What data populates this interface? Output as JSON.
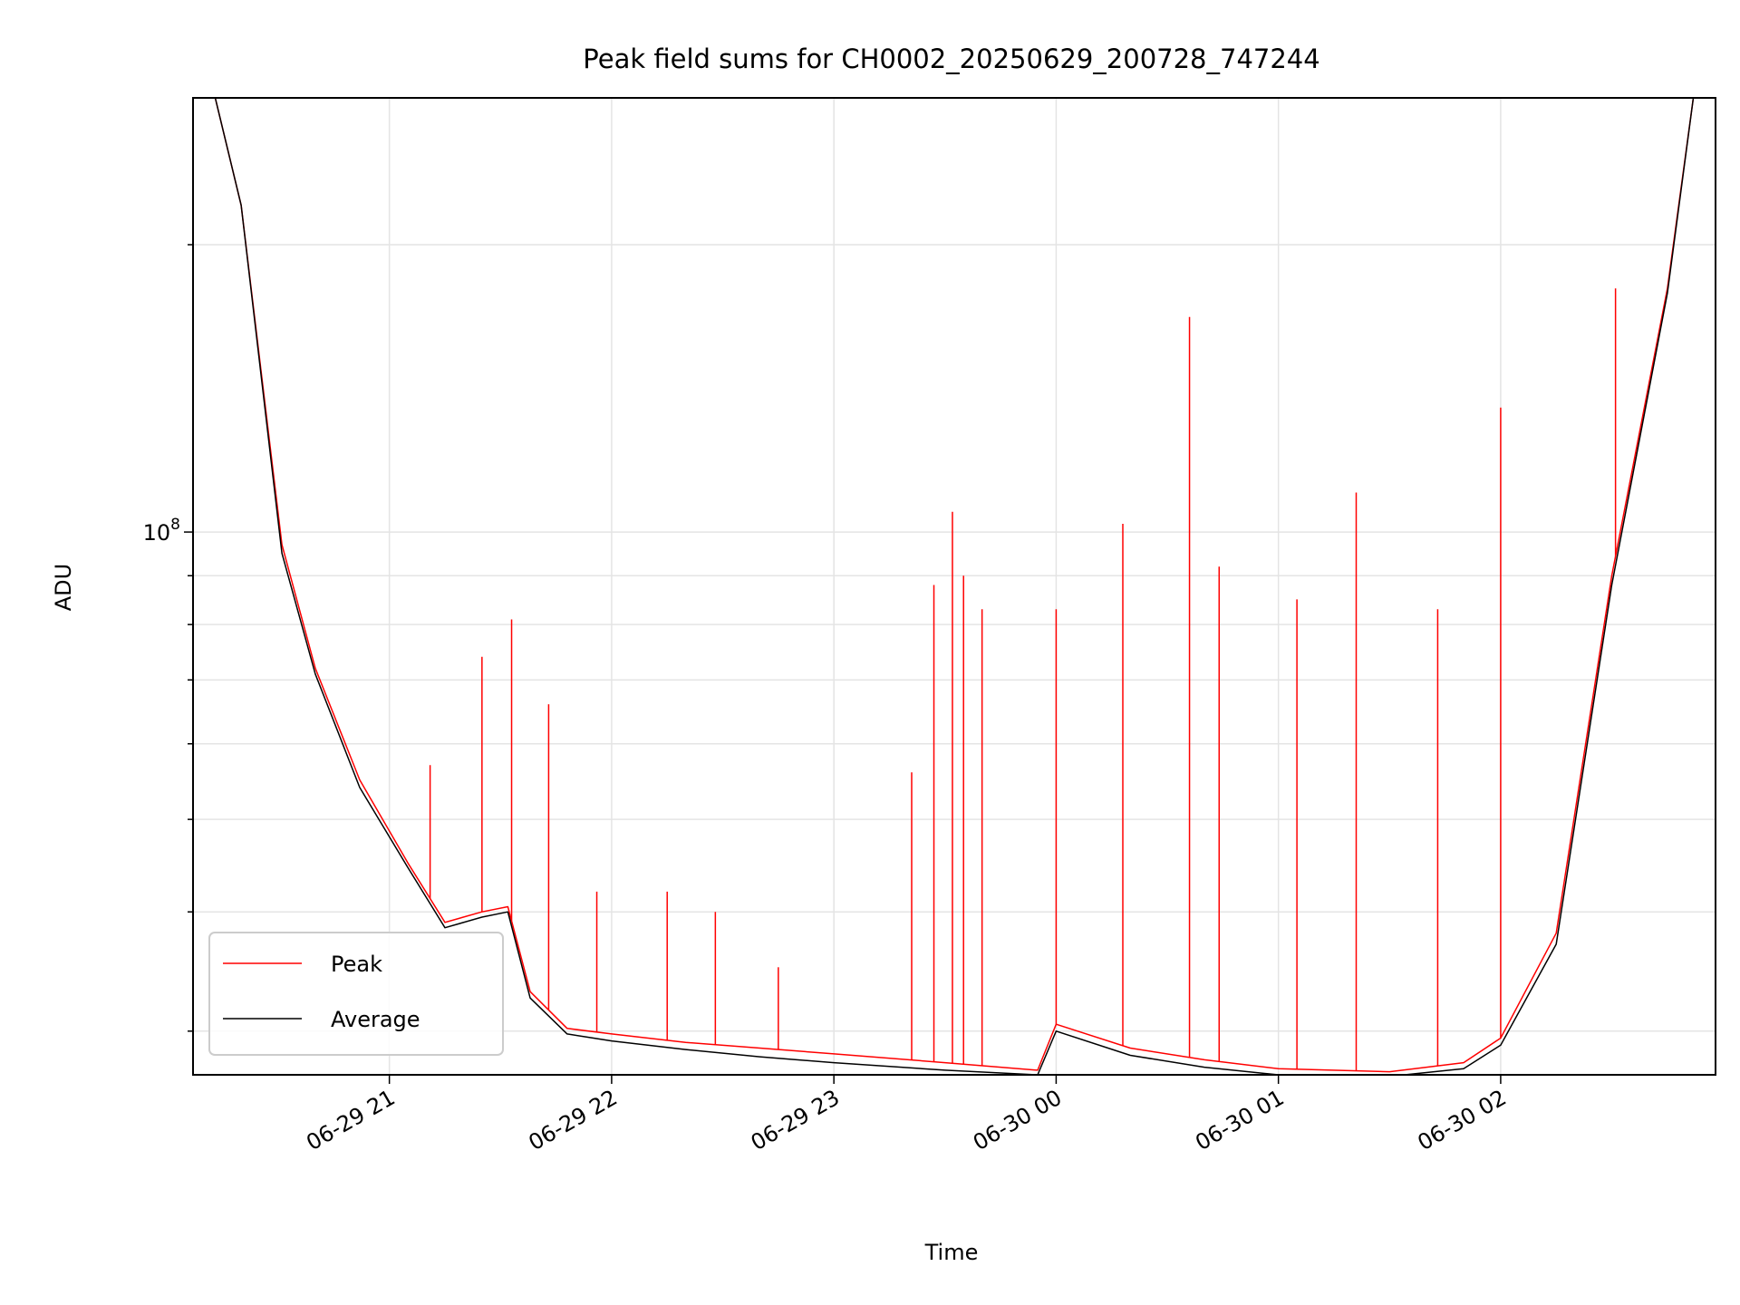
{
  "chart_data": {
    "type": "line",
    "title": "Peak field sums for CH0002_20250629_200728_747244",
    "xlabel": "Time",
    "ylabel": "ADU",
    "yscale": "log",
    "xlim": [
      "2025-06-29 20:07",
      "2025-06-30 02:58"
    ],
    "ylim": [
      27000000,
      285000000
    ],
    "x_ticks": [
      "06-29 21",
      "06-29 22",
      "06-29 23",
      "06-30 00",
      "06-30 01",
      "06-30 02"
    ],
    "y_ticks": [
      {
        "value": 100000000,
        "base": "10",
        "exponent": "8"
      }
    ],
    "grid": true,
    "legend": {
      "position": "lower-left",
      "entries": [
        "Peak",
        "Average"
      ]
    },
    "series": [
      {
        "name": "Peak",
        "color": "#ff0000",
        "x": [
          "2025-06-29 20:13",
          "2025-06-29 20:20",
          "2025-06-29 20:31",
          "2025-06-29 20:40",
          "2025-06-29 20:52",
          "2025-06-29 21:05",
          "2025-06-29 21:15",
          "2025-06-29 21:25",
          "2025-06-29 21:32",
          "2025-06-29 21:38",
          "2025-06-29 21:48",
          "2025-06-29 22:00",
          "2025-06-29 22:20",
          "2025-06-29 22:40",
          "2025-06-29 23:00",
          "2025-06-29 23:30",
          "2025-06-29 23:55",
          "2025-06-30 00:00",
          "2025-06-30 00:20",
          "2025-06-30 00:40",
          "2025-06-30 01:00",
          "2025-06-30 01:30",
          "2025-06-30 01:50",
          "2025-06-30 02:00",
          "2025-06-30 02:15",
          "2025-06-30 02:30",
          "2025-06-30 02:45",
          "2025-06-30 02:52"
        ],
        "y": [
          285000000,
          220000000,
          97000000,
          72000000,
          55000000,
          45000000,
          39000000,
          40000000,
          40500000,
          33000000,
          30200000,
          29800000,
          29200000,
          28800000,
          28400000,
          27800000,
          27300000,
          30500000,
          28800000,
          28000000,
          27400000,
          27200000,
          27800000,
          29500000,
          38000000,
          90000000,
          180000000,
          285000000
        ]
      },
      {
        "name": "Average",
        "color": "#000000",
        "x": [
          "2025-06-29 20:13",
          "2025-06-29 20:20",
          "2025-06-29 20:31",
          "2025-06-29 20:40",
          "2025-06-29 20:52",
          "2025-06-29 21:05",
          "2025-06-29 21:15",
          "2025-06-29 21:25",
          "2025-06-29 21:32",
          "2025-06-29 21:38",
          "2025-06-29 21:48",
          "2025-06-29 22:00",
          "2025-06-29 22:20",
          "2025-06-29 22:40",
          "2025-06-29 23:00",
          "2025-06-29 23:30",
          "2025-06-29 23:55",
          "2025-06-30 00:00",
          "2025-06-30 00:20",
          "2025-06-30 00:40",
          "2025-06-30 01:00",
          "2025-06-30 01:30",
          "2025-06-30 01:50",
          "2025-06-30 02:00",
          "2025-06-30 02:15",
          "2025-06-30 02:30",
          "2025-06-30 02:45",
          "2025-06-30 02:52"
        ],
        "y": [
          285000000,
          220000000,
          95000000,
          71000000,
          54000000,
          44500000,
          38500000,
          39500000,
          40000000,
          32500000,
          29800000,
          29300000,
          28700000,
          28200000,
          27800000,
          27300000,
          27000000,
          30000000,
          28300000,
          27500000,
          27000000,
          26900000,
          27400000,
          29000000,
          37000000,
          88000000,
          178000000,
          285000000
        ]
      }
    ],
    "spikes": {
      "series": "Peak",
      "x": [
        "2025-06-29 21:11",
        "2025-06-29 21:25",
        "2025-06-29 21:33",
        "2025-06-29 21:43",
        "2025-06-29 21:56",
        "2025-06-29 22:15",
        "2025-06-29 22:28",
        "2025-06-29 22:45",
        "2025-06-29 23:21",
        "2025-06-29 23:27",
        "2025-06-29 23:32",
        "2025-06-29 23:35",
        "2025-06-29 23:40",
        "2025-06-30 00:00",
        "2025-06-30 00:18",
        "2025-06-30 00:36",
        "2025-06-30 00:44",
        "2025-06-30 01:05",
        "2025-06-30 01:21",
        "2025-06-30 01:43",
        "2025-06-30 02:00",
        "2025-06-30 02:31"
      ],
      "y": [
        57000000,
        74000000,
        81000000,
        66000000,
        42000000,
        42000000,
        40000000,
        35000000,
        56000000,
        88000000,
        105000000,
        90000000,
        83000000,
        83000000,
        102000000,
        168000000,
        92000000,
        85000000,
        110000000,
        83000000,
        135000000,
        180000000
      ]
    }
  }
}
